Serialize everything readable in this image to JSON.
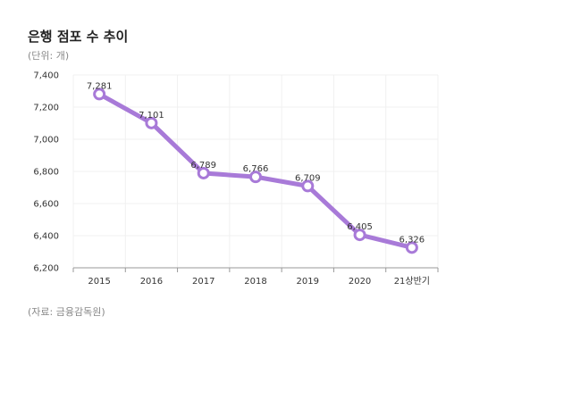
{
  "title": "은행 점포 수 추이",
  "unit": "(단위: 개)",
  "source": "(자료: 금융감독원)",
  "colors": {
    "line": "#a87ad8",
    "marker_fill": "#ffffff",
    "grid": "#f0f0f0",
    "axis": "#999999"
  },
  "chart_data": {
    "type": "line",
    "categories": [
      "2015",
      "2016",
      "2017",
      "2018",
      "2019",
      "2020",
      "21상반기"
    ],
    "values": [
      7281,
      7101,
      6789,
      6766,
      6709,
      6405,
      6326
    ],
    "data_labels": [
      "7,281",
      "7,101",
      "6,789",
      "6,766",
      "6,709",
      "6,405",
      "6,326"
    ],
    "ylim": [
      6200,
      7400
    ],
    "y_ticks": [
      6200,
      6400,
      6600,
      6800,
      7000,
      7200,
      7400
    ],
    "y_tick_labels": [
      "6,200",
      "6,400",
      "6,600",
      "6,800",
      "7,000",
      "7,200",
      "7,400"
    ],
    "grid": true
  }
}
